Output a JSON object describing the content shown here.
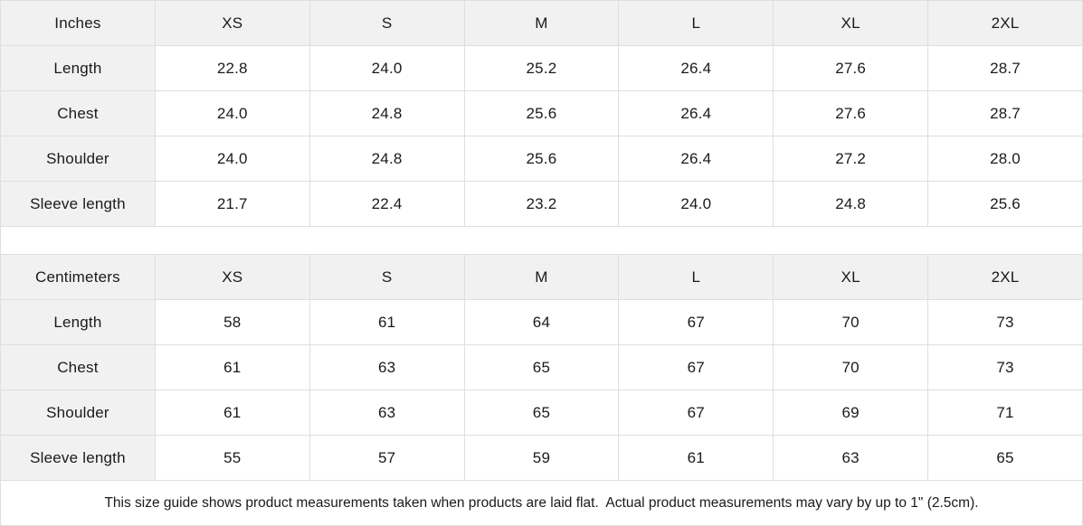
{
  "tables": [
    {
      "unit_label": "Inches",
      "sizes": [
        "XS",
        "S",
        "M",
        "L",
        "XL",
        "2XL"
      ],
      "rows": [
        {
          "label": "Length",
          "values": [
            "22.8",
            "24.0",
            "25.2",
            "26.4",
            "27.6",
            "28.7"
          ]
        },
        {
          "label": "Chest",
          "values": [
            "24.0",
            "24.8",
            "25.6",
            "26.4",
            "27.6",
            "28.7"
          ]
        },
        {
          "label": "Shoulder",
          "values": [
            "24.0",
            "24.8",
            "25.6",
            "26.4",
            "27.2",
            "28.0"
          ]
        },
        {
          "label": "Sleeve length",
          "values": [
            "21.7",
            "22.4",
            "23.2",
            "24.0",
            "24.8",
            "25.6"
          ]
        }
      ]
    },
    {
      "unit_label": "Centimeters",
      "sizes": [
        "XS",
        "S",
        "M",
        "L",
        "XL",
        "2XL"
      ],
      "rows": [
        {
          "label": "Length",
          "values": [
            "58",
            "61",
            "64",
            "67",
            "70",
            "73"
          ]
        },
        {
          "label": "Chest",
          "values": [
            "61",
            "63",
            "65",
            "67",
            "70",
            "73"
          ]
        },
        {
          "label": "Shoulder",
          "values": [
            "61",
            "63",
            "65",
            "67",
            "69",
            "71"
          ]
        },
        {
          "label": "Sleeve length",
          "values": [
            "55",
            "57",
            "59",
            "61",
            "63",
            "65"
          ]
        }
      ]
    }
  ],
  "footer": {
    "note": "This size guide shows product measurements taken when products are laid flat.  Actual product measurements may vary by up to 1\" (2.5cm)."
  },
  "colors": {
    "shaded_bg": "#f1f1f1",
    "border": "#dedede",
    "text": "#1a1a1a"
  }
}
